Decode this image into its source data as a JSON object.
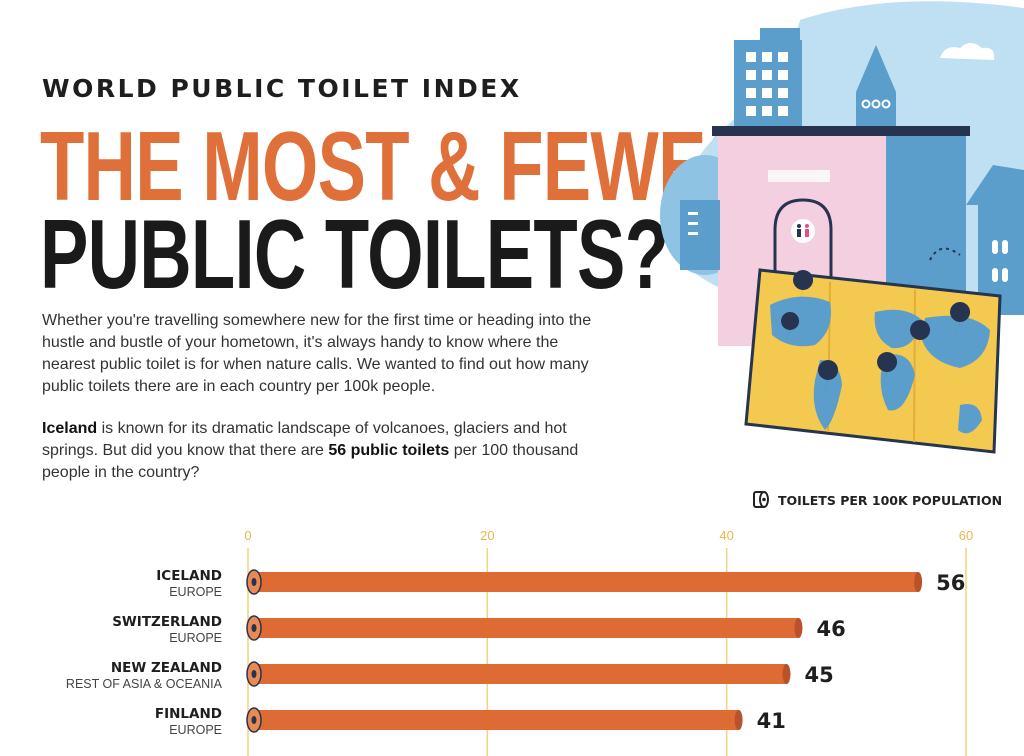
{
  "header": {
    "kicker": "WORLD PUBLIC TOILET INDEX",
    "title_line1": "THE MOST & FEWEST",
    "title_line2": "PUBLIC TOILETS?"
  },
  "intro": {
    "p1": "Whether you're travelling somewhere new for the first time or heading into the hustle and bustle of your hometown, it's always handy to know where the nearest public toilet is for when nature calls. We wanted to find out how many public toilets there are in each country per 100k people.",
    "p2_bold1": "Iceland",
    "p2_text1": " is known for its dramatic landscape of volcanoes, glaciers and hot springs. But did you know that there are ",
    "p2_bold2": "56 public toilets",
    "p2_text2": " per 100 thousand people in the country?"
  },
  "legend": {
    "label": "TOILETS PER 100K POPULATION",
    "icon": "toilet-roll-icon"
  },
  "colors": {
    "bar": "#de6a34",
    "bar_edge": "#b9522a",
    "grid": "#f2d27a",
    "tick": "#e8b84a",
    "accent": "#e0703a"
  },
  "chart_data": {
    "type": "bar",
    "orientation": "horizontal",
    "xlim": [
      0,
      60
    ],
    "x_ticks": [
      "0",
      "20",
      "40",
      "60"
    ],
    "x_tick_values": [
      0,
      20,
      40,
      60
    ],
    "rows": [
      {
        "country": "ICELAND",
        "region": "EUROPE",
        "value": 56,
        "label": "56"
      },
      {
        "country": "SWITZERLAND",
        "region": "EUROPE",
        "value": 46,
        "label": "46"
      },
      {
        "country": "NEW ZEALAND",
        "region": "REST OF ASIA & OCEANIA",
        "value": 45,
        "label": "45"
      },
      {
        "country": "FINLAND",
        "region": "EUROPE",
        "value": 41,
        "label": "41"
      }
    ]
  }
}
